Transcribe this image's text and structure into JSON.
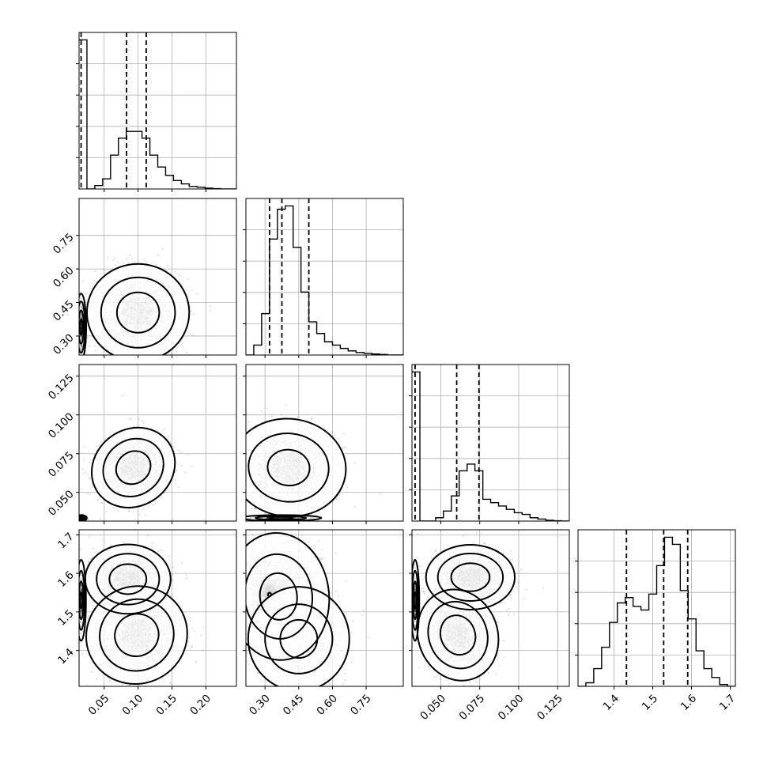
{
  "chart_data": {
    "type": "corner",
    "grid": true,
    "parameters": [
      {
        "range": [
          0.013,
          0.245
        ],
        "ticks": [
          0.05,
          0.1,
          0.15,
          0.2
        ],
        "tick_labels": [
          "0.05",
          "0.10",
          "0.15",
          "0.20"
        ]
      },
      {
        "range": [
          0.215,
          0.915
        ],
        "ticks": [
          0.3,
          0.45,
          0.6,
          0.75
        ],
        "tick_labels": [
          "0.30",
          "0.45",
          "0.60",
          "0.75"
        ]
      },
      {
        "range": [
          0.0315,
          0.1325
        ],
        "ticks": [
          0.05,
          0.075,
          0.1,
          0.125
        ],
        "tick_labels": [
          "0.050",
          "0.075",
          "0.100",
          "0.125"
        ]
      },
      {
        "range": [
          1.307,
          1.713
        ],
        "ticks": [
          1.4,
          1.5,
          1.6,
          1.7
        ],
        "tick_labels": [
          "1.4",
          "1.5",
          "1.6",
          "1.7"
        ]
      }
    ],
    "histograms": [
      {
        "bins": [
          0.013,
          0.0246,
          0.0362,
          0.0478,
          0.0594,
          0.071,
          0.0826,
          0.0942,
          0.1058,
          0.1174,
          0.129,
          0.1406,
          0.1522,
          0.1638,
          0.1754,
          0.187,
          0.1986,
          0.2102,
          0.2218,
          0.2334,
          0.245
        ],
        "counts": [
          0.88,
          0,
          0.02,
          0.06,
          0.2,
          0.3,
          0.34,
          0.34,
          0.3,
          0.2,
          0.13,
          0.08,
          0.05,
          0.03,
          0.015,
          0.01,
          0.005,
          0.002,
          0,
          0
        ],
        "quantiles": [
          0.016,
          0.083,
          0.112
        ]
      },
      {
        "bins": [
          0.215,
          0.25,
          0.285,
          0.32,
          0.355,
          0.39,
          0.425,
          0.46,
          0.495,
          0.53,
          0.565,
          0.6,
          0.635,
          0.67,
          0.705,
          0.74,
          0.775,
          0.81,
          0.845,
          0.88,
          0.915
        ],
        "counts": [
          0,
          0.06,
          0.25,
          0.7,
          0.88,
          0.9,
          0.65,
          0.38,
          0.2,
          0.13,
          0.08,
          0.06,
          0.04,
          0.025,
          0.015,
          0.01,
          0.006,
          0.003,
          0,
          0
        ],
        "quantiles": [
          0.32,
          0.375,
          0.495
        ]
      },
      {
        "bins": [
          0.0315,
          0.0366,
          0.0416,
          0.0467,
          0.0517,
          0.0568,
          0.0618,
          0.0669,
          0.0719,
          0.077,
          0.082,
          0.0871,
          0.0921,
          0.0972,
          0.1022,
          0.1073,
          0.1123,
          0.1174,
          0.1224,
          0.1275,
          0.1325
        ],
        "counts": [
          0.89,
          0,
          0,
          0.02,
          0.06,
          0.15,
          0.3,
          0.34,
          0.3,
          0.13,
          0.11,
          0.09,
          0.07,
          0.05,
          0.04,
          0.02,
          0.012,
          0.005,
          0.002,
          0
        ],
        "quantiles": [
          0.0335,
          0.0602,
          0.0745
        ]
      },
      {
        "bins": [
          1.307,
          1.3273,
          1.3476,
          1.3679,
          1.3882,
          1.4085,
          1.4288,
          1.4491,
          1.4694,
          1.4897,
          1.51,
          1.5303,
          1.5506,
          1.5709,
          1.5912,
          1.6115,
          1.6318,
          1.6521,
          1.6724,
          1.6927,
          1.713
        ],
        "counts": [
          0,
          0.02,
          0.1,
          0.22,
          0.36,
          0.47,
          0.5,
          0.45,
          0.43,
          0.52,
          0.68,
          0.84,
          0.8,
          0.54,
          0.38,
          0.2,
          0.1,
          0.05,
          0.01,
          0
        ],
        "quantiles": [
          1.432,
          1.528,
          1.59
        ]
      }
    ],
    "pairs": [
      {
        "row": 1,
        "col": 0,
        "blobs": [
          {
            "center": [
              0.1,
              0.405
            ],
            "spread": [
              0.026,
              0.075
            ],
            "rot": 0,
            "weight": 1,
            "contours": [
              1.2,
              2.1,
              2.9
            ]
          },
          {
            "center": [
              0.016,
              0.34
            ],
            "spread": [
              0.0025,
              0.05
            ],
            "rot": 0,
            "weight": 0.15,
            "contours": [
              0.7,
              1.5,
              2.3,
              3
            ]
          }
        ]
      },
      {
        "row": 2,
        "col": 0,
        "blobs": [
          {
            "center": [
              0.093,
              0.066
            ],
            "spread": [
              0.022,
              0.0085
            ],
            "rot": 0.62,
            "weight": 1,
            "contours": [
              1.2,
              2.1,
              2.9
            ]
          },
          {
            "center": [
              0.016,
              0.0335
            ],
            "spread": [
              0.003,
              0.0007
            ],
            "rot": 0,
            "weight": 0.15,
            "contours": [
              1,
              2,
              2.8
            ]
          }
        ]
      },
      {
        "row": 2,
        "col": 1,
        "blobs": [
          {
            "center": [
              0.405,
              0.066
            ],
            "spread": [
              0.085,
              0.0105
            ],
            "rot": -0.1,
            "weight": 1,
            "contours": [
              1.1,
              2.1,
              3
            ]
          },
          {
            "center": [
              0.37,
              0.0335
            ],
            "spread": [
              0.075,
              0.0008
            ],
            "rot": 0,
            "weight": 0.15,
            "contours": [
              0.7,
              1.5,
              2.4
            ]
          }
        ]
      },
      {
        "row": 3,
        "col": 0,
        "blobs": [
          {
            "center": [
              0.085,
              1.585
            ],
            "spread": [
              0.021,
              0.03
            ],
            "rot": 0,
            "weight": 1,
            "contours": [
              1.3,
              2.2,
              3
            ]
          },
          {
            "center": [
              0.098,
              1.44
            ],
            "spread": [
              0.025,
              0.042
            ],
            "rot": 0.4,
            "weight": 1,
            "contours": [
              1.3,
              2.2,
              3
            ]
          },
          {
            "center": [
              0.016,
              1.53
            ],
            "spread": [
              0.0024,
              0.035
            ],
            "rot": 0,
            "weight": 0.12,
            "contours": [
              0.6,
              1.4,
              2.2,
              3
            ]
          }
        ]
      },
      {
        "row": 3,
        "col": 1,
        "blobs": [
          {
            "center": [
              0.36,
              1.54
            ],
            "spread": [
              0.075,
              0.055
            ],
            "rot": 0.1,
            "weight": 1,
            "contours": [
              1.1,
              2,
              3
            ]
          },
          {
            "center": [
              0.45,
              1.43
            ],
            "spread": [
              0.075,
              0.045
            ],
            "rot": 0,
            "weight": 0.9,
            "contours": [
              1.1,
              2,
              3
            ]
          },
          {
            "center": [
              0.32,
              1.545
            ],
            "spread": [
              0.018,
              0.012
            ],
            "rot": 0,
            "weight": 0.5,
            "contours": [
              0.4
            ]
          }
        ]
      },
      {
        "row": 3,
        "col": 2,
        "blobs": [
          {
            "center": [
              0.069,
              1.59
            ],
            "spread": [
              0.0095,
              0.028
            ],
            "rot": 0,
            "weight": 1,
            "contours": [
              1.3,
              2.2,
              3
            ]
          },
          {
            "center": [
              0.061,
              1.44
            ],
            "spread": [
              0.0085,
              0.04
            ],
            "rot": 0.35,
            "weight": 1,
            "contours": [
              1.3,
              2.2,
              3
            ]
          },
          {
            "center": [
              0.0335,
              1.53
            ],
            "spread": [
              0.0009,
              0.035
            ],
            "rot": 0,
            "weight": 0.12,
            "contours": [
              0.6,
              1.4,
              2.2,
              3
            ]
          }
        ]
      }
    ]
  }
}
